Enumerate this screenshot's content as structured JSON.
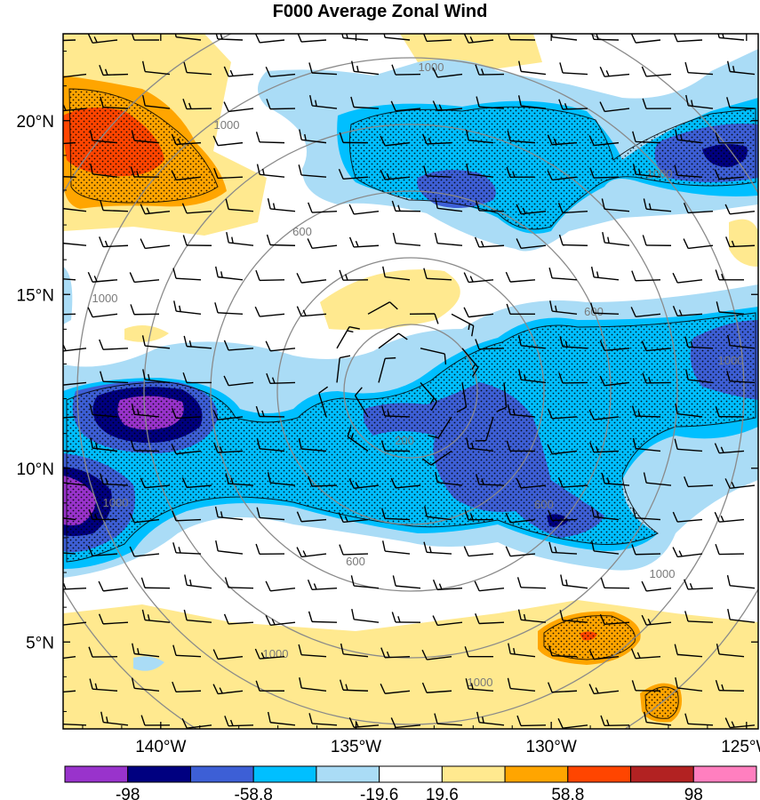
{
  "title": "F000 Average Zonal Wind",
  "chart_data": {
    "type": "heatmap",
    "title": "F000 Average Zonal Wind",
    "lon_ticks": [
      "140°W",
      "135°W",
      "130°W",
      "125°W"
    ],
    "lat_ticks": [
      "20°N",
      "15°N",
      "10°N",
      "5°N"
    ],
    "lon_tick_values": [
      -140,
      -135,
      -130,
      -125
    ],
    "lat_tick_values": [
      20,
      15,
      10,
      5
    ],
    "lon_range": [
      -142.5,
      -124.7
    ],
    "lat_range": [
      2.5,
      22.5
    ],
    "colorbar": {
      "labels": [
        "-98",
        "-58.8",
        "-19.6",
        "19.6",
        "58.8",
        "98"
      ],
      "colors": [
        "#9933cc",
        "#000080",
        "#3d5fd6",
        "#00bfff",
        "#aadcf6",
        "#ffffff",
        "#ffe98f",
        "#ffa500",
        "#ff4500",
        "#b22222",
        "#ff7fbf"
      ]
    },
    "range_rings": {
      "labels": [
        "200",
        "600",
        "1000"
      ],
      "color": "#8a8a8a"
    },
    "stipple": "dots over shaded regions",
    "wind_barbs": "black barbs on a regular grid"
  }
}
